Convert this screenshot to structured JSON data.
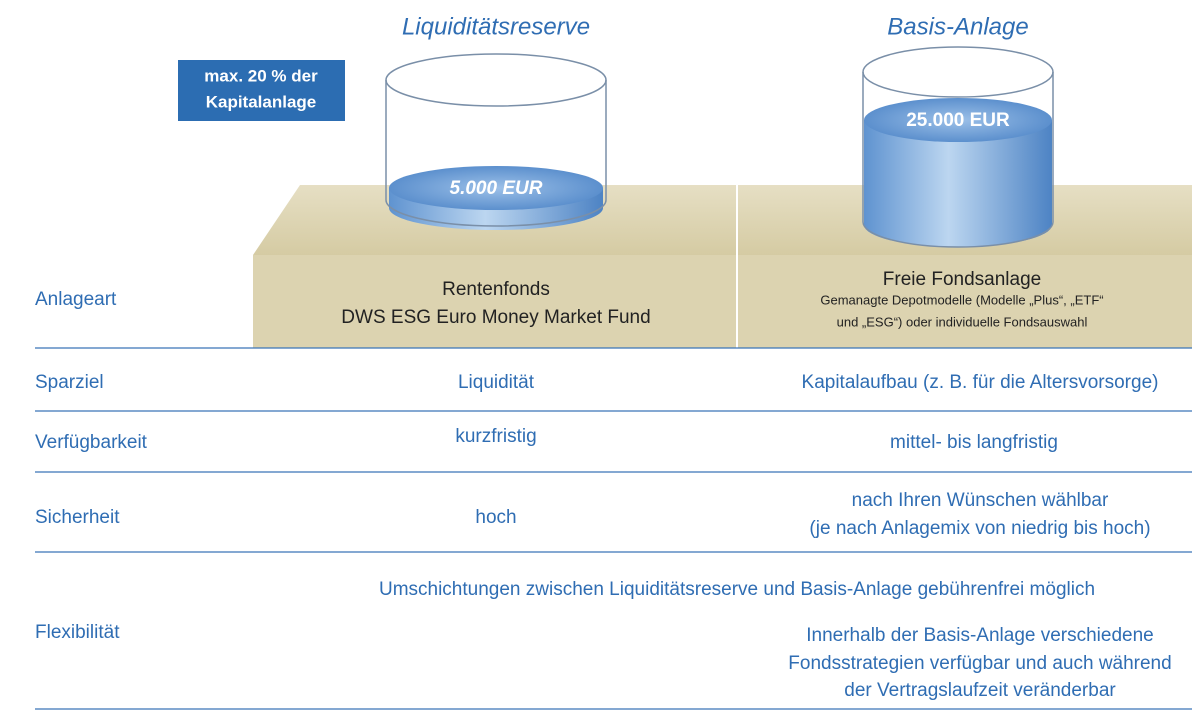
{
  "columns": [
    {
      "title": "Liquiditätsreserve",
      "amount": "5.000 EUR"
    },
    {
      "title": "Basis-Anlage",
      "amount": "25.000 EUR"
    }
  ],
  "badge": [
    "max. 20 % der",
    "Kapitalanlage"
  ],
  "rows": [
    {
      "label": "Anlageart",
      "cells": [
        [
          "Rentenfonds",
          "DWS ESG Euro Money Market Fund"
        ],
        [
          "Freie Fondsanlage",
          "Gemanagte Depotmodelle (Modelle „Plus“, „ETF“",
          "und „ESG“) oder individuelle Fondsauswahl"
        ]
      ]
    },
    {
      "label": "Sparziel",
      "cells": [
        [
          "Liquidität"
        ],
        [
          "Kapitalaufbau (z. B. für die Altersvorsorge)"
        ]
      ]
    },
    {
      "label": "Verfügbarkeit",
      "cells": [
        [
          "kurzfristig"
        ],
        [
          "mittel- bis langfristig"
        ]
      ]
    },
    {
      "label": "Sicherheit",
      "cells": [
        [
          "hoch"
        ],
        [
          "nach Ihren Wünschen wählbar",
          "(je nach Anlagemix von niedrig bis hoch)"
        ]
      ]
    },
    {
      "label": "Flexibilität",
      "span": "Umschichtungen zwischen Liquiditätsreserve und Basis-Anlage gebührenfrei möglich",
      "cells": [
        [],
        [
          "Innerhalb der Basis-Anlage verschiedene",
          "Fondsstrategien verfügbar und auch während",
          "der Vertragslaufzeit veränderbar"
        ]
      ]
    }
  ]
}
